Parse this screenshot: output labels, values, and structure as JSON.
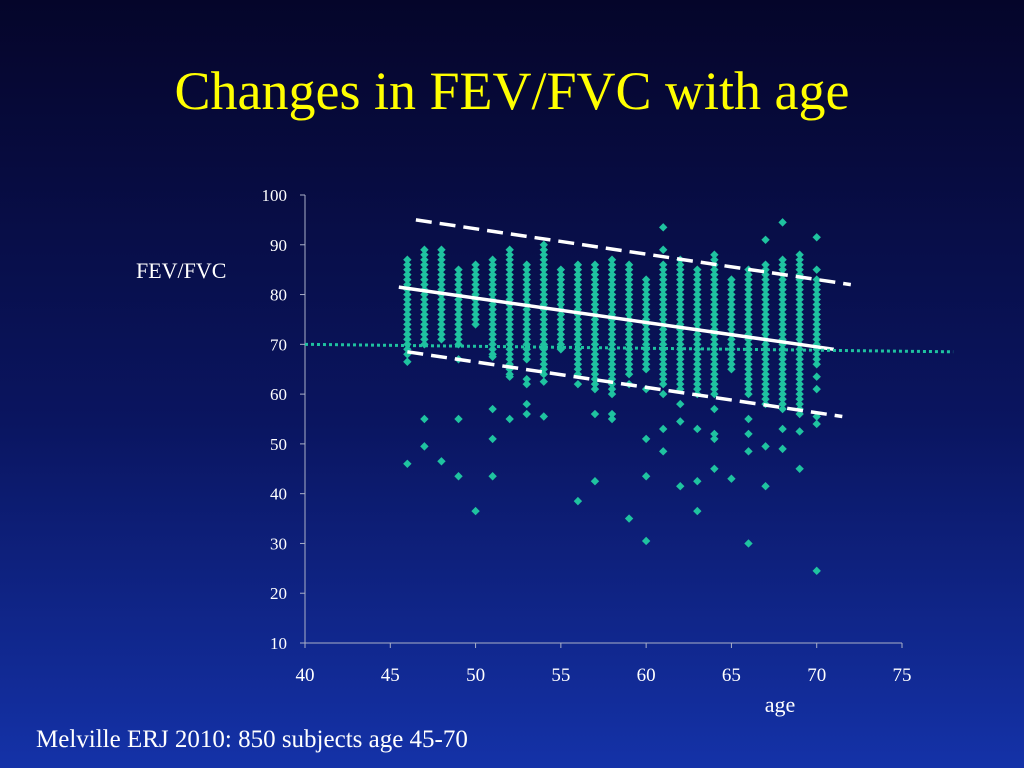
{
  "slide": {
    "title": "Changes in FEV/FVC with age",
    "footnote": "Melville ERJ 2010: 850 subjects age 45-70"
  },
  "chart_data": {
    "type": "scatter",
    "title": "",
    "xlabel": "age",
    "ylabel": "FEV/FVC",
    "xlim": [
      40,
      75
    ],
    "ylim": [
      10,
      100
    ],
    "xticks": [
      40,
      45,
      50,
      55,
      60,
      65,
      70,
      75
    ],
    "yticks": [
      10,
      20,
      30,
      40,
      50,
      60,
      70,
      80,
      90,
      100
    ],
    "grid": false,
    "marker_color": "#1fc3a0",
    "series": [
      {
        "points": [
          [
            46,
            66.5
          ],
          [
            46,
            46
          ],
          [
            47,
            55
          ],
          [
            47,
            49.5
          ],
          [
            48,
            46.5
          ],
          [
            49,
            55
          ],
          [
            49,
            43.5
          ],
          [
            49,
            67
          ],
          [
            50,
            36.5
          ],
          [
            51,
            57
          ],
          [
            51,
            51
          ],
          [
            51,
            43.5
          ],
          [
            51,
            67.5
          ],
          [
            52,
            55
          ],
          [
            52,
            63.5
          ],
          [
            53,
            56
          ],
          [
            53,
            58
          ],
          [
            53,
            62
          ],
          [
            53,
            63
          ],
          [
            54,
            55.5
          ],
          [
            54,
            62.5
          ],
          [
            56,
            38.5
          ],
          [
            56,
            62
          ],
          [
            57,
            56
          ],
          [
            57,
            42.5
          ],
          [
            58,
            56
          ],
          [
            58,
            55
          ],
          [
            59,
            35
          ],
          [
            59,
            62
          ],
          [
            60,
            30.5
          ],
          [
            60,
            43.5
          ],
          [
            60,
            51
          ],
          [
            60,
            61
          ],
          [
            61,
            53
          ],
          [
            61,
            48.5
          ],
          [
            61,
            60
          ],
          [
            61,
            93.5
          ],
          [
            61,
            89
          ],
          [
            62,
            54.5
          ],
          [
            62,
            58
          ],
          [
            62,
            41.5
          ],
          [
            63,
            53
          ],
          [
            63,
            36.5
          ],
          [
            63,
            42.5
          ],
          [
            64,
            52
          ],
          [
            64,
            51
          ],
          [
            64,
            45
          ],
          [
            64,
            57
          ],
          [
            65,
            43
          ],
          [
            66,
            52
          ],
          [
            66,
            48.5
          ],
          [
            66,
            30
          ],
          [
            66,
            55
          ],
          [
            66,
            63
          ],
          [
            67,
            41.5
          ],
          [
            67,
            49.5
          ],
          [
            67,
            91
          ],
          [
            68,
            94.5
          ],
          [
            68,
            49
          ],
          [
            68,
            53
          ],
          [
            69,
            45
          ],
          [
            69,
            52.5
          ],
          [
            70,
            24.5
          ],
          [
            70,
            54
          ],
          [
            70,
            55.5
          ],
          [
            70,
            61
          ],
          [
            70,
            63.5
          ],
          [
            70,
            91.5
          ],
          [
            70,
            85
          ]
        ],
        "columns": [
          {
            "x": 46,
            "low": 68,
            "high": 87
          },
          {
            "x": 47,
            "low": 70,
            "high": 89
          },
          {
            "x": 48,
            "low": 71,
            "high": 89
          },
          {
            "x": 49,
            "low": 70,
            "high": 85
          },
          {
            "x": 50,
            "low": 74,
            "high": 86
          },
          {
            "x": 51,
            "low": 68,
            "high": 87
          },
          {
            "x": 52,
            "low": 64,
            "high": 89
          },
          {
            "x": 53,
            "low": 67,
            "high": 86
          },
          {
            "x": 54,
            "low": 64,
            "high": 90
          },
          {
            "x": 55,
            "low": 69,
            "high": 85
          },
          {
            "x": 56,
            "low": 64,
            "high": 86
          },
          {
            "x": 57,
            "low": 61,
            "high": 86
          },
          {
            "x": 58,
            "low": 60,
            "high": 87
          },
          {
            "x": 59,
            "low": 64,
            "high": 86
          },
          {
            "x": 60,
            "low": 65,
            "high": 83
          },
          {
            "x": 61,
            "low": 62,
            "high": 86
          },
          {
            "x": 62,
            "low": 61,
            "high": 87
          },
          {
            "x": 63,
            "low": 60,
            "high": 85
          },
          {
            "x": 64,
            "low": 60,
            "high": 88
          },
          {
            "x": 65,
            "low": 65,
            "high": 83
          },
          {
            "x": 66,
            "low": 60,
            "high": 85
          },
          {
            "x": 67,
            "low": 58,
            "high": 86
          },
          {
            "x": 68,
            "low": 57,
            "high": 87
          },
          {
            "x": 69,
            "low": 56,
            "high": 88
          },
          {
            "x": 70,
            "low": 66,
            "high": 83
          }
        ]
      }
    ],
    "lines": [
      {
        "style": "solid",
        "color": "#ffffff",
        "from": [
          45.5,
          81.5
        ],
        "to": [
          71,
          69
        ]
      },
      {
        "style": "dashed",
        "color": "#ffffff",
        "from": [
          46.5,
          95
        ],
        "to": [
          72,
          82
        ]
      },
      {
        "style": "dashed",
        "color": "#ffffff",
        "from": [
          46,
          68.5
        ],
        "to": [
          71.5,
          55.5
        ]
      },
      {
        "style": "dotted",
        "color": "#1fc3a0",
        "from": [
          40,
          70
        ],
        "to": [
          78,
          68.5
        ]
      }
    ]
  }
}
